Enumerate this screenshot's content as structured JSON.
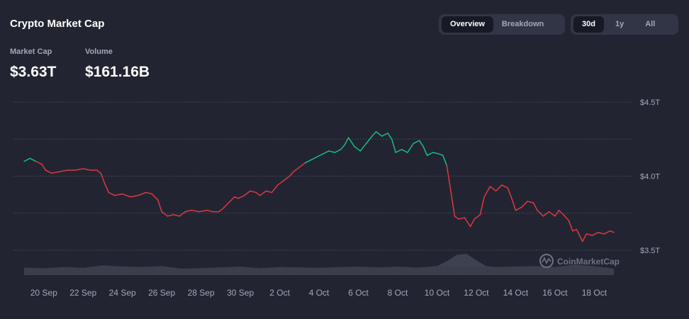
{
  "header": {
    "title": "Crypto Market Cap",
    "view_tabs": [
      {
        "label": "Overview",
        "active": true
      },
      {
        "label": "Breakdown",
        "active": false
      }
    ],
    "range_tabs": [
      {
        "label": "30d",
        "active": true
      },
      {
        "label": "1y",
        "active": false
      },
      {
        "label": "All",
        "active": false
      }
    ]
  },
  "stats": {
    "market_cap_label": "Market Cap",
    "market_cap_value": "$3.63T",
    "volume_label": "Volume",
    "volume_value": "$161.16B"
  },
  "watermark": "CoinMarketCap",
  "colors": {
    "up": "#16c784",
    "down": "#ea3943",
    "background": "#222531",
    "volume": "#3d4150"
  },
  "chart_data": {
    "type": "line",
    "y_ticks": [
      "$4.5T",
      "$4.0T",
      "$3.5T"
    ],
    "y_tick_values": [
      4.5,
      4.0,
      3.5
    ],
    "ylim": [
      3.5,
      4.5
    ],
    "x_ticks": [
      "20 Sep",
      "22 Sep",
      "24 Sep",
      "26 Sep",
      "28 Sep",
      "30 Sep",
      "2 Oct",
      "4 Oct",
      "6 Oct",
      "8 Oct",
      "10 Oct",
      "12 Oct",
      "14 Oct",
      "16 Oct",
      "18 Oct"
    ],
    "x_tick_days": [
      1,
      3,
      5,
      7,
      9,
      11,
      13,
      15,
      17,
      19,
      21,
      23,
      25,
      27,
      29
    ],
    "xlim_days": [
      0,
      30.5
    ],
    "grid": "horizontal dotted",
    "baseline_value": 4.1,
    "series": [
      {
        "values_days": [
          [
            0.0,
            4.1
          ],
          [
            0.3,
            4.12
          ],
          [
            0.6,
            4.1
          ],
          [
            0.9,
            4.08
          ],
          [
            1.1,
            4.04
          ],
          [
            1.4,
            4.02
          ],
          [
            1.8,
            4.03
          ],
          [
            2.2,
            4.04
          ],
          [
            2.6,
            4.04
          ],
          [
            3.0,
            4.05
          ],
          [
            3.4,
            4.04
          ],
          [
            3.7,
            4.04
          ],
          [
            3.9,
            4.02
          ],
          [
            4.1,
            3.95
          ],
          [
            4.3,
            3.89
          ],
          [
            4.6,
            3.87
          ],
          [
            5.0,
            3.88
          ],
          [
            5.4,
            3.86
          ],
          [
            5.8,
            3.87
          ],
          [
            6.2,
            3.89
          ],
          [
            6.5,
            3.88
          ],
          [
            6.8,
            3.84
          ],
          [
            7.0,
            3.76
          ],
          [
            7.3,
            3.73
          ],
          [
            7.6,
            3.74
          ],
          [
            7.9,
            3.73
          ],
          [
            8.2,
            3.76
          ],
          [
            8.5,
            3.77
          ],
          [
            8.9,
            3.76
          ],
          [
            9.3,
            3.77
          ],
          [
            9.6,
            3.76
          ],
          [
            9.9,
            3.76
          ],
          [
            10.1,
            3.78
          ],
          [
            10.4,
            3.82
          ],
          [
            10.7,
            3.86
          ],
          [
            10.9,
            3.85
          ],
          [
            11.2,
            3.87
          ],
          [
            11.5,
            3.9
          ],
          [
            11.8,
            3.89
          ],
          [
            12.0,
            3.87
          ],
          [
            12.3,
            3.9
          ],
          [
            12.6,
            3.89
          ],
          [
            12.9,
            3.94
          ],
          [
            13.2,
            3.97
          ],
          [
            13.5,
            4.0
          ],
          [
            13.7,
            4.03
          ],
          [
            14.0,
            4.06
          ],
          [
            14.3,
            4.09
          ],
          [
            14.6,
            4.11
          ],
          [
            14.9,
            4.13
          ],
          [
            15.2,
            4.15
          ],
          [
            15.5,
            4.17
          ],
          [
            15.8,
            4.16
          ],
          [
            16.1,
            4.18
          ],
          [
            16.3,
            4.21
          ],
          [
            16.5,
            4.26
          ],
          [
            16.8,
            4.2
          ],
          [
            17.1,
            4.17
          ],
          [
            17.4,
            4.22
          ],
          [
            17.7,
            4.27
          ],
          [
            17.9,
            4.3
          ],
          [
            18.2,
            4.27
          ],
          [
            18.5,
            4.29
          ],
          [
            18.7,
            4.25
          ],
          [
            18.9,
            4.16
          ],
          [
            19.2,
            4.18
          ],
          [
            19.5,
            4.16
          ],
          [
            19.8,
            4.22
          ],
          [
            20.1,
            4.24
          ],
          [
            20.3,
            4.2
          ],
          [
            20.5,
            4.14
          ],
          [
            20.8,
            4.16
          ],
          [
            21.1,
            4.15
          ],
          [
            21.3,
            4.14
          ],
          [
            21.5,
            4.07
          ],
          [
            21.7,
            3.9
          ],
          [
            21.9,
            3.73
          ],
          [
            22.1,
            3.71
          ],
          [
            22.4,
            3.72
          ],
          [
            22.7,
            3.66
          ],
          [
            22.9,
            3.71
          ],
          [
            23.2,
            3.74
          ],
          [
            23.4,
            3.86
          ],
          [
            23.7,
            3.93
          ],
          [
            24.0,
            3.9
          ],
          [
            24.3,
            3.94
          ],
          [
            24.6,
            3.92
          ],
          [
            24.8,
            3.85
          ],
          [
            25.0,
            3.77
          ],
          [
            25.3,
            3.79
          ],
          [
            25.6,
            3.83
          ],
          [
            25.9,
            3.82
          ],
          [
            26.1,
            3.77
          ],
          [
            26.4,
            3.73
          ],
          [
            26.7,
            3.76
          ],
          [
            27.0,
            3.73
          ],
          [
            27.2,
            3.77
          ],
          [
            27.5,
            3.73
          ],
          [
            27.7,
            3.7
          ],
          [
            27.9,
            3.63
          ],
          [
            28.1,
            3.64
          ],
          [
            28.4,
            3.56
          ],
          [
            28.6,
            3.61
          ],
          [
            28.9,
            3.6
          ],
          [
            29.2,
            3.62
          ],
          [
            29.5,
            3.61
          ],
          [
            29.8,
            3.63
          ],
          [
            30.0,
            3.62
          ]
        ]
      }
    ],
    "volume_days": [
      [
        0.0,
        0.35
      ],
      [
        1.0,
        0.32
      ],
      [
        2.0,
        0.38
      ],
      [
        3.0,
        0.34
      ],
      [
        4.0,
        0.45
      ],
      [
        5.0,
        0.4
      ],
      [
        6.0,
        0.38
      ],
      [
        7.0,
        0.42
      ],
      [
        8.0,
        0.3
      ],
      [
        9.0,
        0.33
      ],
      [
        10.0,
        0.36
      ],
      [
        11.0,
        0.4
      ],
      [
        12.0,
        0.32
      ],
      [
        13.0,
        0.38
      ],
      [
        14.0,
        0.36
      ],
      [
        15.0,
        0.34
      ],
      [
        16.0,
        0.37
      ],
      [
        17.0,
        0.4
      ],
      [
        18.0,
        0.36
      ],
      [
        19.0,
        0.4
      ],
      [
        20.0,
        0.35
      ],
      [
        21.0,
        0.42
      ],
      [
        21.6,
        0.7
      ],
      [
        22.0,
        0.95
      ],
      [
        22.5,
        1.0
      ],
      [
        22.9,
        0.75
      ],
      [
        23.5,
        0.42
      ],
      [
        24.0,
        0.38
      ],
      [
        25.0,
        0.4
      ],
      [
        26.0,
        0.42
      ],
      [
        27.0,
        0.38
      ],
      [
        28.0,
        0.48
      ],
      [
        29.0,
        0.42
      ],
      [
        30.0,
        0.3
      ]
    ]
  }
}
